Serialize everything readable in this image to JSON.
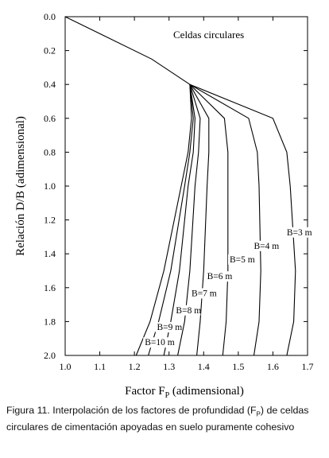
{
  "chart_data": {
    "type": "line",
    "title": "Celdas circulares",
    "xlabel_main": "Factor F",
    "xlabel_sub": "P",
    "xlabel_rest": " (adimensional)",
    "ylabel": "Relación D/B (adimensional)",
    "xlim": [
      1.0,
      1.7
    ],
    "ylim": [
      0.0,
      2.0
    ],
    "y_inverted": true,
    "x_ticks": [
      "1.0",
      "1.1",
      "1.2",
      "1.3",
      "1.4",
      "1.5",
      "1.6",
      "1.7"
    ],
    "y_ticks": [
      "0.0",
      "0.2",
      "0.4",
      "0.6",
      "0.8",
      "1.0",
      "1.2",
      "1.4",
      "1.6",
      "1.8",
      "2.0"
    ],
    "grid": false,
    "common_curve": {
      "x": [
        1.0,
        1.25,
        1.36
      ],
      "y": [
        0.0,
        0.25,
        0.4
      ]
    },
    "series": [
      {
        "name": "B=3 m",
        "x": [
          1.36,
          1.6,
          1.64,
          1.65,
          1.665,
          1.66,
          1.64
        ],
        "y": [
          0.4,
          0.6,
          0.8,
          1.0,
          1.5,
          1.8,
          2.0
        ]
      },
      {
        "name": "B=4 m",
        "x": [
          1.36,
          1.53,
          1.555,
          1.56,
          1.565,
          1.56,
          1.545
        ],
        "y": [
          0.4,
          0.6,
          0.8,
          1.0,
          1.5,
          1.8,
          2.0
        ]
      },
      {
        "name": "B=5 m",
        "x": [
          1.36,
          1.46,
          1.47,
          1.47,
          1.47,
          1.465,
          1.455
        ],
        "y": [
          0.4,
          0.6,
          0.8,
          1.0,
          1.5,
          1.8,
          2.0
        ]
      },
      {
        "name": "B=6 m",
        "x": [
          1.36,
          1.415,
          1.415,
          1.41,
          1.4,
          1.39,
          1.38
        ],
        "y": [
          0.4,
          0.6,
          0.8,
          1.0,
          1.5,
          1.8,
          2.0
        ]
      },
      {
        "name": "B=7 m",
        "x": [
          1.36,
          1.39,
          1.385,
          1.375,
          1.36,
          1.345,
          1.325
        ],
        "y": [
          0.4,
          0.6,
          0.8,
          1.0,
          1.5,
          1.8,
          2.0
        ]
      },
      {
        "name": "B=8 m",
        "x": [
          1.36,
          1.375,
          1.37,
          1.355,
          1.33,
          1.305,
          1.285
        ],
        "y": [
          0.4,
          0.6,
          0.8,
          1.0,
          1.5,
          1.8,
          2.0
        ]
      },
      {
        "name": "B=9 m",
        "x": [
          1.36,
          1.37,
          1.36,
          1.345,
          1.305,
          1.27,
          1.24
        ],
        "y": [
          0.4,
          0.6,
          0.8,
          1.0,
          1.5,
          1.8,
          2.0
        ]
      },
      {
        "name": "B=10 m",
        "x": [
          1.36,
          1.365,
          1.355,
          1.335,
          1.285,
          1.245,
          1.205
        ],
        "y": [
          0.4,
          0.6,
          0.8,
          1.0,
          1.5,
          1.8,
          2.0
        ]
      }
    ],
    "labels": [
      {
        "text": "B=3 m",
        "x": 1.64,
        "y": 1.29
      },
      {
        "text": "B=4 m",
        "x": 1.545,
        "y": 1.37
      },
      {
        "text": "B=5 m",
        "x": 1.475,
        "y": 1.45
      },
      {
        "text": "B=6 m",
        "x": 1.41,
        "y": 1.55
      },
      {
        "text": "B=7 m",
        "x": 1.365,
        "y": 1.65
      },
      {
        "text": "B=8 m",
        "x": 1.32,
        "y": 1.75
      },
      {
        "text": "B=9 m",
        "x": 1.265,
        "y": 1.85
      },
      {
        "text": "B=10 m",
        "x": 1.23,
        "y": 1.94
      }
    ]
  },
  "caption": {
    "prefix": "Figura 11. Interpolación de los factores de profundidad (F",
    "sub": "P",
    "rest": ") de celdas circulares de cimentación apoyadas en suelo puramente cohesivo"
  }
}
